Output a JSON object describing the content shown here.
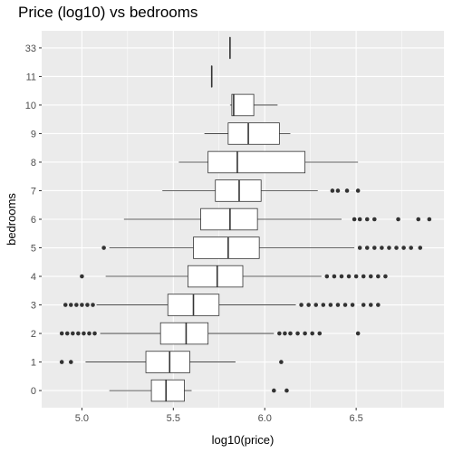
{
  "chart_data": {
    "type": "box",
    "title": "Price (log10) vs bedrooms",
    "xlabel": "log10(price)",
    "ylabel": "bedrooms",
    "xlim": [
      4.78,
      6.98
    ],
    "xticks": [
      5.0,
      5.5,
      6.0,
      6.5
    ],
    "xtick_labels": [
      "5.0",
      "5.5",
      "6.0",
      "6.5"
    ],
    "categories": [
      "0",
      "1",
      "2",
      "3",
      "4",
      "5",
      "6",
      "7",
      "8",
      "9",
      "10",
      "11",
      "33"
    ],
    "grid": true,
    "colors": {
      "panel": "#ebebeb",
      "grid_major": "#ffffff",
      "box_fill": "#ffffff",
      "box_line": "#333333",
      "outlier": "#333333"
    },
    "boxes": [
      {
        "category": "0",
        "lower_whisker": 5.15,
        "q1": 5.38,
        "median": 5.46,
        "q3": 5.56,
        "upper_whisker": 5.6,
        "outliers": [
          6.05,
          6.12
        ]
      },
      {
        "category": "1",
        "lower_whisker": 5.02,
        "q1": 5.35,
        "median": 5.48,
        "q3": 5.59,
        "upper_whisker": 5.84,
        "outliers": [
          4.89,
          4.94,
          6.09
        ]
      },
      {
        "category": "2",
        "lower_whisker": 5.1,
        "q1": 5.43,
        "median": 5.57,
        "q3": 5.69,
        "upper_whisker": 6.05,
        "outliers": [
          4.89,
          4.92,
          4.95,
          4.98,
          5.01,
          5.04,
          5.07,
          6.08,
          6.11,
          6.14,
          6.18,
          6.22,
          6.26,
          6.3,
          6.51
        ]
      },
      {
        "category": "3",
        "lower_whisker": 5.08,
        "q1": 5.47,
        "median": 5.61,
        "q3": 5.75,
        "upper_whisker": 6.17,
        "outliers": [
          4.91,
          4.94,
          4.97,
          5.0,
          5.03,
          5.06,
          6.2,
          6.24,
          6.28,
          6.32,
          6.36,
          6.4,
          6.44,
          6.48,
          6.54,
          6.58,
          6.62
        ]
      },
      {
        "category": "4",
        "lower_whisker": 5.13,
        "q1": 5.58,
        "median": 5.74,
        "q3": 5.88,
        "upper_whisker": 6.31,
        "outliers": [
          5.0,
          6.34,
          6.38,
          6.42,
          6.46,
          6.5,
          6.54,
          6.58,
          6.62,
          6.66
        ]
      },
      {
        "category": "5",
        "lower_whisker": 5.15,
        "q1": 5.61,
        "median": 5.8,
        "q3": 5.97,
        "upper_whisker": 6.49,
        "outliers": [
          5.12,
          6.52,
          6.56,
          6.6,
          6.64,
          6.68,
          6.72,
          6.76,
          6.8,
          6.85
        ]
      },
      {
        "category": "6",
        "lower_whisker": 5.23,
        "q1": 5.65,
        "median": 5.81,
        "q3": 5.96,
        "upper_whisker": 6.42,
        "outliers": [
          6.49,
          6.52,
          6.56,
          6.6,
          6.73,
          6.84,
          6.9
        ]
      },
      {
        "category": "7",
        "lower_whisker": 5.44,
        "q1": 5.73,
        "median": 5.86,
        "q3": 5.98,
        "upper_whisker": 6.29,
        "outliers": [
          6.37,
          6.4,
          6.45,
          6.51
        ]
      },
      {
        "category": "8",
        "lower_whisker": 5.53,
        "q1": 5.69,
        "median": 5.85,
        "q3": 6.22,
        "upper_whisker": 6.51,
        "outliers": []
      },
      {
        "category": "9",
        "lower_whisker": 5.67,
        "q1": 5.8,
        "median": 5.91,
        "q3": 6.08,
        "upper_whisker": 6.14,
        "outliers": []
      },
      {
        "category": "10",
        "lower_whisker": 5.81,
        "q1": 5.82,
        "median": 5.83,
        "q3": 5.94,
        "upper_whisker": 6.07,
        "outliers": []
      },
      {
        "category": "11",
        "lower_whisker": 5.71,
        "q1": 5.71,
        "median": 5.71,
        "q3": 5.71,
        "upper_whisker": 5.71,
        "outliers": []
      },
      {
        "category": "33",
        "lower_whisker": 5.81,
        "q1": 5.81,
        "median": 5.81,
        "q3": 5.81,
        "upper_whisker": 5.81,
        "outliers": []
      }
    ]
  }
}
